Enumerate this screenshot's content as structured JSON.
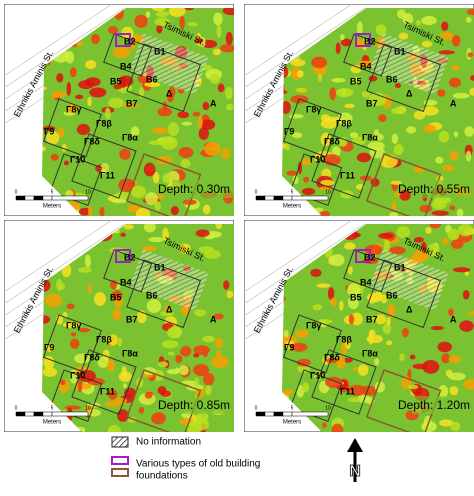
{
  "panels": [
    {
      "depth": "Depth: 0.30m"
    },
    {
      "depth": "Depth: 0.55m"
    },
    {
      "depth": "Depth: 0.85m"
    },
    {
      "depth": "Depth: 1.20m"
    }
  ],
  "streets": {
    "top": "Tsimiski St.",
    "left": "Ethnikis Aminis St."
  },
  "zone_labels": [
    "B2",
    "B1",
    "B4",
    "B5",
    "B6",
    "Δ",
    "A",
    "B7",
    "Γ8γ",
    "Γ9",
    "Γ8β",
    "Γ8δ",
    "Γ8α",
    "Γ10",
    "Γ11"
  ],
  "scale": {
    "unit": "Meters",
    "ticks": [
      "0",
      "5",
      "10"
    ]
  },
  "legend": {
    "no_information": "No information",
    "foundations": [
      "Various types of old building",
      "foundations"
    ]
  },
  "north": "N"
}
